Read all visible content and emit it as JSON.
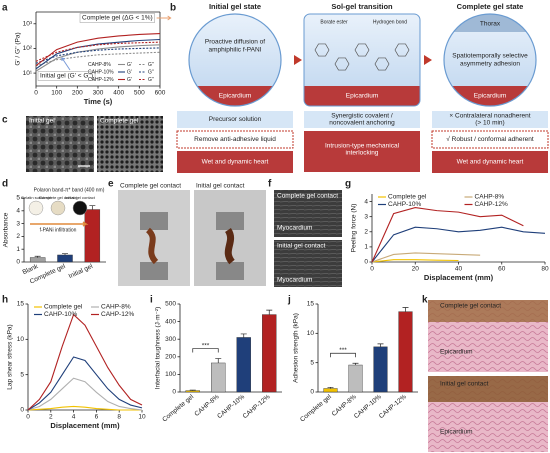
{
  "panel_labels": [
    "a",
    "b",
    "c",
    "d",
    "e",
    "f",
    "g",
    "h",
    "i",
    "j",
    "k"
  ],
  "chart_data": [
    {
      "type": "line",
      "ylabel": "G' / G'' (Pa)",
      "xlabel": "Time (s)",
      "log_y": true,
      "x": [
        0,
        100,
        200,
        300,
        400,
        500,
        600
      ],
      "xlim": [
        0,
        600
      ],
      "xticks": [
        0,
        100,
        200,
        300,
        400,
        500,
        600
      ],
      "ylim": [
        3,
        3000
      ],
      "yticks": [
        {
          "value": 10,
          "label": "10¹"
        },
        {
          "value": 100,
          "label": "10²"
        },
        {
          "value": 1000,
          "label": "10³"
        }
      ],
      "moduli": [
        "G'",
        "G''"
      ],
      "legend": "lower right",
      "series": [
        {
          "name": "CAHP-8%",
          "color": "#8c8c8c",
          "G'": [
            12,
            40,
            70,
            95,
            115,
            130,
            140
          ],
          "G''": [
            20,
            35,
            45,
            55,
            60,
            65,
            70
          ]
        },
        {
          "name": "CAHP-10%",
          "color": "#1f3f7a",
          "G'": [
            15,
            60,
            110,
            150,
            180,
            210,
            230
          ],
          "G''": [
            25,
            50,
            70,
            85,
            95,
            100,
            105
          ]
        },
        {
          "name": "CAHP-12%",
          "color": "#b22222",
          "G'": [
            20,
            90,
            180,
            260,
            320,
            370,
            400
          ],
          "G''": [
            30,
            70,
            110,
            140,
            160,
            170,
            180
          ]
        }
      ],
      "annotations": [
        "Complete gel (ΔG < 1%)",
        "Initial gel (G' < G'')"
      ]
    },
    {
      "type": "bar",
      "title": "Polaron band-π* band (400 nm)",
      "ylabel": "Absorbance",
      "categories": [
        "Blank",
        "Complete gel",
        "Initial gel"
      ],
      "values": [
        0.35,
        0.55,
        4.1
      ],
      "errors": [
        0.1,
        0.1,
        0.3
      ],
      "colors": [
        "#a0a0a0",
        "#1f3f7a",
        "#b22222"
      ],
      "ylim": [
        0,
        5
      ],
      "yticks": [
        0,
        1,
        2,
        3,
        4,
        5
      ],
      "inset": [
        "Gelatin substrate",
        "Complete gel contact",
        "Initial gel contact",
        "f-PANi infiltration"
      ]
    },
    {
      "type": "line",
      "ylabel": "Peeling force (N)",
      "xlabel": "Displacement (mm)",
      "x": [
        0,
        10,
        20,
        30,
        40,
        50,
        60,
        70,
        80
      ],
      "xlim": [
        0,
        80
      ],
      "xticks": [
        0,
        20,
        40,
        60,
        80
      ],
      "ylim": [
        0,
        4.5
      ],
      "yticks": [
        0,
        1,
        2,
        3,
        4
      ],
      "legend": "upper right",
      "series": [
        {
          "name": "Complete gel",
          "color": "#f2c200",
          "values": [
            0,
            0.15,
            0.15,
            0.12,
            0.1,
            null,
            null,
            null,
            null
          ]
        },
        {
          "name": "CAHP-8%",
          "color": "#c8aa78",
          "values": [
            0,
            0.5,
            0.6,
            0.55,
            0.5,
            0.45,
            null,
            null,
            null
          ]
        },
        {
          "name": "CAHP-10%",
          "color": "#1f3f7a",
          "values": [
            0,
            1.8,
            2.3,
            2.2,
            2.0,
            2.1,
            2.3,
            2.0,
            1.9
          ]
        },
        {
          "name": "CAHP-12%",
          "color": "#b22222",
          "values": [
            0,
            3.2,
            3.6,
            3.4,
            3.3,
            3.0,
            3.1,
            2.4,
            null
          ]
        }
      ]
    },
    {
      "type": "line",
      "ylabel": "Lap shear stress (kPa)",
      "xlabel": "Displacement (mm)",
      "x": [
        0,
        1,
        2,
        3,
        4,
        5,
        6,
        7,
        8,
        9,
        10
      ],
      "xlim": [
        0,
        10
      ],
      "xticks": [
        0,
        2,
        4,
        6,
        8,
        10
      ],
      "ylim": [
        0,
        15
      ],
      "yticks": [
        0,
        5,
        10,
        15
      ],
      "legend": "upper right",
      "series": [
        {
          "name": "Complete gel",
          "color": "#f2c200",
          "values": [
            0,
            0.1,
            0.2,
            0.4,
            0.5,
            0.4,
            0.2,
            0.1,
            0,
            0,
            0
          ]
        },
        {
          "name": "CAHP-8%",
          "color": "#b0b0b0",
          "values": [
            0,
            0.5,
            1.5,
            3,
            4.5,
            4,
            2.5,
            1.2,
            0.5,
            0.2,
            0
          ]
        },
        {
          "name": "CAHP-10%",
          "color": "#1f3f7a",
          "values": [
            0,
            1,
            2.5,
            5,
            7.5,
            7,
            5,
            3,
            1.5,
            0.7,
            0.3
          ]
        },
        {
          "name": "CAHP-12%",
          "color": "#b22222",
          "values": [
            0,
            1.5,
            4,
            9,
            13.5,
            12,
            9,
            6,
            3.5,
            1.5,
            0.7
          ]
        }
      ]
    },
    {
      "type": "bar",
      "ylabel": "Interfacial toughness (J·m⁻²)",
      "categories": [
        "Complete gel",
        "CAHP-8%",
        "CAHP-10%",
        "CAHP-12%"
      ],
      "values": [
        8,
        165,
        310,
        440
      ],
      "errors": [
        3,
        25,
        20,
        25
      ],
      "colors": [
        "#f2c200",
        "#bdbdbd",
        "#1f3f7a",
        "#b22222"
      ],
      "ylim": [
        0,
        500
      ],
      "yticks": [
        0,
        100,
        200,
        300,
        400,
        500
      ],
      "significance": "***"
    },
    {
      "type": "bar",
      "ylabel": "Adhesion strength (kPa)",
      "categories": [
        "Complete gel",
        "CAHP-8%",
        "CAHP-10%",
        "CAHP-12%"
      ],
      "values": [
        0.6,
        4.6,
        7.7,
        13.7
      ],
      "errors": [
        0.2,
        0.3,
        0.5,
        0.7
      ],
      "colors": [
        "#f2c200",
        "#bdbdbd",
        "#1f3f7a",
        "#b22222"
      ],
      "ylim": [
        0,
        15
      ],
      "yticks": [
        0,
        5,
        10,
        15
      ],
      "significance": "***"
    }
  ],
  "diagram_b": {
    "columns": [
      {
        "title": "Initial gel state",
        "callout": [
          "Proactive diffusion of",
          "amphiphilic f-PANI"
        ],
        "tissue": "Epicardium",
        "steps": [
          [
            "Precursor solution"
          ],
          [
            "Remove anti-adhesive liquid"
          ]
        ],
        "base": "Wet and dynamic heart"
      },
      {
        "title": "Sol-gel transition",
        "labels": [
          "Borate ester",
          "Hydrogen bond"
        ],
        "tissue": "Epicardium",
        "steps": [
          [
            "Synergistic covalent /",
            "noncovalent anchoring"
          ],
          [
            "Intrusion-type mechanical",
            "interlocking"
          ]
        ]
      },
      {
        "title": "Complete gel state",
        "top": "Thorax",
        "callout": [
          "Spatiotemporally selective",
          "asymmetry adhesion"
        ],
        "tissue": "Epicardium",
        "steps": [
          [
            "× Contralateral nonadherent",
            "(> 10 min)"
          ],
          [
            "√ Robust / conformal adherent"
          ]
        ],
        "base": "Wet and dynamic heart"
      }
    ]
  },
  "images": {
    "c": [
      "Initial gel",
      "Complete gel"
    ],
    "e": [
      "Complete gel contact",
      "Initial gel contact"
    ],
    "f": [
      "Complete gel contact",
      "Myocardium",
      "Initial gel contact",
      "Myocardium"
    ],
    "k": [
      "Complete gel contact",
      "Epicardium",
      "Initial gel contact",
      "Epicardium"
    ]
  }
}
